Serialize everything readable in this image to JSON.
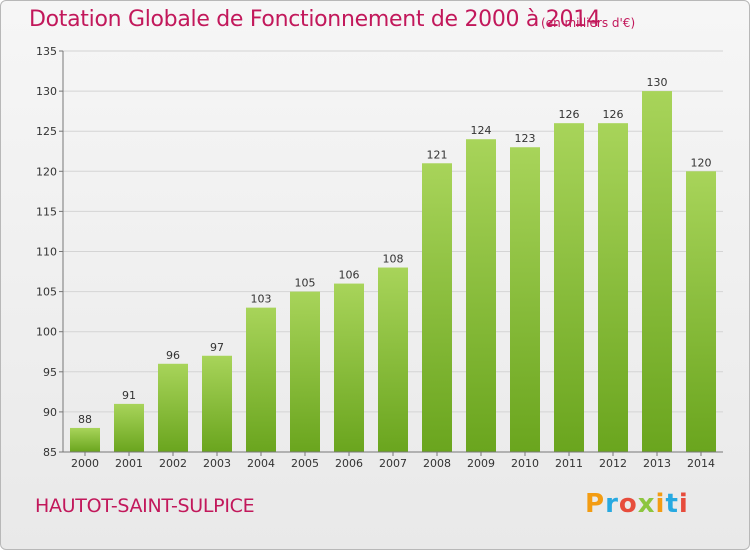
{
  "header": {
    "title": "Dotation Globale de Fonctionnement de 2000 à 2014",
    "subtitle": "(en milliers d'€)"
  },
  "footer": {
    "commune": "HAUTOT-SAINT-SULPICE",
    "logo": "Proxiti"
  },
  "colors": {
    "accent": "#c2185b",
    "bar_top": "#a8d45a",
    "bar_bottom": "#6aa51e"
  },
  "chart_data": {
    "type": "bar",
    "title": "Dotation Globale de Fonctionnement de 2000 à 2014",
    "subtitle": "(en milliers d'€)",
    "xlabel": "",
    "ylabel": "",
    "categories": [
      "2000",
      "2001",
      "2002",
      "2003",
      "2004",
      "2005",
      "2006",
      "2007",
      "2008",
      "2009",
      "2010",
      "2011",
      "2012",
      "2013",
      "2014"
    ],
    "values": [
      88,
      91,
      96,
      97,
      103,
      105,
      106,
      108,
      121,
      124,
      123,
      126,
      126,
      130,
      120
    ],
    "ylim": [
      85,
      135
    ],
    "yticks": [
      85,
      90,
      95,
      100,
      105,
      110,
      115,
      120,
      125,
      130,
      135
    ],
    "grid": true,
    "legend": "none",
    "data_labels": true
  }
}
